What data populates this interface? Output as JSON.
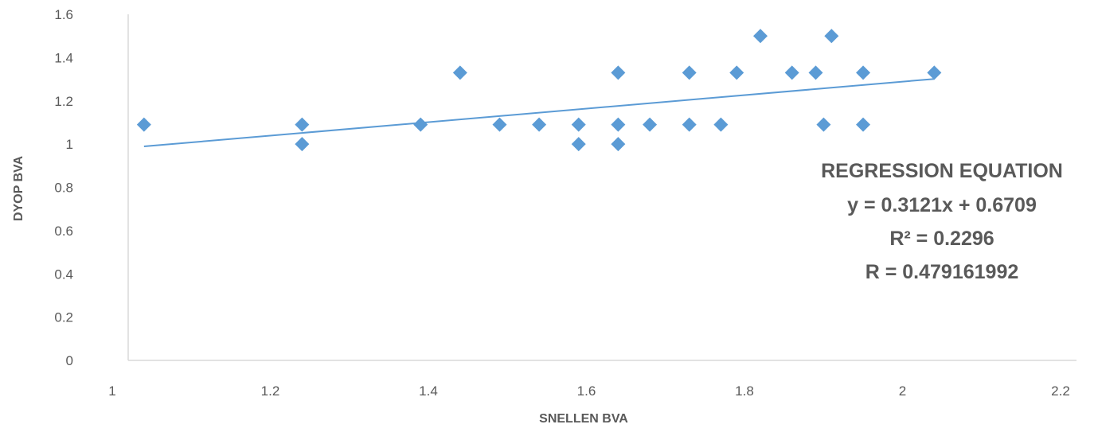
{
  "chart_data": {
    "type": "scatter",
    "xlabel": "SNELLEN BVA",
    "ylabel": "DYOP BVA",
    "xlim": [
      1,
      2.2
    ],
    "ylim": [
      0,
      1.6
    ],
    "x_ticks": [
      "1",
      "1.2",
      "1.4",
      "1.6",
      "1.8",
      "2",
      "2.2"
    ],
    "y_ticks": [
      "0",
      "0.2",
      "0.4",
      "0.6",
      "0.8",
      "1",
      "1.2",
      "1.4",
      "1.6"
    ],
    "grid": false,
    "marker_color": "#5B9BD5",
    "trendline_color": "#5B9BD5",
    "points": [
      {
        "x": 1.02,
        "y": 1.09
      },
      {
        "x": 1.22,
        "y": 1.09
      },
      {
        "x": 1.22,
        "y": 1.0
      },
      {
        "x": 1.37,
        "y": 1.09
      },
      {
        "x": 1.42,
        "y": 1.33
      },
      {
        "x": 1.47,
        "y": 1.09
      },
      {
        "x": 1.52,
        "y": 1.09
      },
      {
        "x": 1.57,
        "y": 1.09
      },
      {
        "x": 1.57,
        "y": 1.0
      },
      {
        "x": 1.62,
        "y": 1.33
      },
      {
        "x": 1.62,
        "y": 1.09
      },
      {
        "x": 1.62,
        "y": 1.0
      },
      {
        "x": 1.66,
        "y": 1.09
      },
      {
        "x": 1.71,
        "y": 1.33
      },
      {
        "x": 1.71,
        "y": 1.09
      },
      {
        "x": 1.75,
        "y": 1.09
      },
      {
        "x": 1.77,
        "y": 1.33
      },
      {
        "x": 1.8,
        "y": 1.5
      },
      {
        "x": 1.84,
        "y": 1.33
      },
      {
        "x": 1.87,
        "y": 1.33
      },
      {
        "x": 1.88,
        "y": 1.09
      },
      {
        "x": 1.89,
        "y": 1.5
      },
      {
        "x": 1.93,
        "y": 1.33
      },
      {
        "x": 1.93,
        "y": 1.09
      },
      {
        "x": 2.02,
        "y": 1.33
      }
    ],
    "trendline": {
      "slope": 0.3121,
      "intercept": 0.6709,
      "x_range": [
        1.02,
        2.02
      ]
    },
    "annotation": {
      "title": "REGRESSION EQUATION",
      "equation": "y = 0.3121x + 0.6709",
      "r_squared": "R² = 0.2296",
      "r": "R = 0.479161992"
    }
  }
}
